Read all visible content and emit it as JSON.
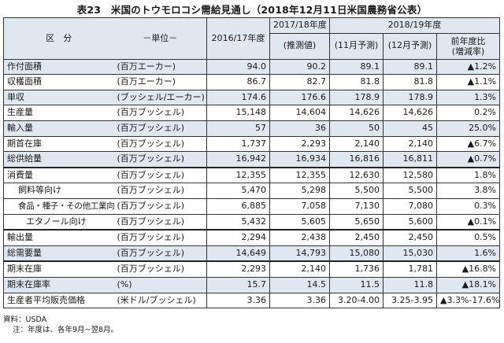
{
  "title": "表23　米国のトウモロコシ需給見通し（2018年12月11日米国農務省公表）",
  "header": {
    "kubun": "区　分",
    "unit": "－単位－",
    "col_2016": "2016/17年度",
    "col_2017": "2017/18年度",
    "col_2017_sub": "(推測値)",
    "col_2018": "2018/19年度",
    "col_2018_nov": "(11月予測)",
    "col_2018_dec": "(12月予測)",
    "col_change_line1": "前年度比",
    "col_change_line2": "(増減率)"
  },
  "rows": [
    {
      "label": "作付面積",
      "unit": "(百万エーカー)",
      "v2016": "94.0",
      "v2017": "90.2",
      "nov": "89.1",
      "dec": "89.1",
      "chg": "▲1.2%"
    },
    {
      "label": "収穫面積",
      "unit": "(百万エーカー)",
      "v2016": "86.7",
      "v2017": "82.7",
      "nov": "81.8",
      "dec": "81.8",
      "chg": "▲1.1%"
    },
    {
      "label": "単収",
      "unit": "(ブッシェル/エーカー)",
      "v2016": "174.6",
      "v2017": "176.6",
      "nov": "178.9",
      "dec": "178.9",
      "chg": "1.3%"
    },
    {
      "label": "生産量",
      "unit": "(百万ブッシェル)",
      "v2016": "15,148",
      "v2017": "14,604",
      "nov": "14,626",
      "dec": "14,626",
      "chg": "0.2%"
    },
    {
      "label": "輸入量",
      "unit": "(百万ブッシェル)",
      "v2016": "57",
      "v2017": "36",
      "nov": "50",
      "dec": "45",
      "chg": "25.0%"
    },
    {
      "label": "期首在庫",
      "unit": "(百万ブッシェル)",
      "v2016": "1,737",
      "v2017": "2,293",
      "nov": "2,140",
      "dec": "2,140",
      "chg": "▲6.7%"
    },
    {
      "label": "総供給量",
      "unit": "(百万ブッシェル)",
      "v2016": "16,942",
      "v2017": "16,934",
      "nov": "16,816",
      "dec": "16,811",
      "chg": "▲0.7%"
    },
    {
      "label": "消費量",
      "unit": "(百万ブッシェル)",
      "v2016": "12,355",
      "v2017": "12,355",
      "nov": "12,630",
      "dec": "12,580",
      "chg": "1.8%"
    },
    {
      "label": "飼料等向け",
      "unit": "(百万ブッシェル)",
      "v2016": "5,470",
      "v2017": "5,298",
      "nov": "5,500",
      "dec": "5,500",
      "chg": "3.8%"
    },
    {
      "label": "食品・種子・その他工業向け",
      "unit": "(百万ブッシェル)",
      "v2016": "6,885",
      "v2017": "7,058",
      "nov": "7,130",
      "dec": "7,080",
      "chg": "0.3%"
    },
    {
      "label": "エタノール向け",
      "unit": "(百万ブッシェル)",
      "v2016": "5,432",
      "v2017": "5,605",
      "nov": "5,650",
      "dec": "5,600",
      "chg": "▲0.1%"
    },
    {
      "label": "輸出量",
      "unit": "(百万ブッシェル)",
      "v2016": "2,294",
      "v2017": "2,438",
      "nov": "2,450",
      "dec": "2,450",
      "chg": "0.5%"
    },
    {
      "label": "総需要量",
      "unit": "(百万ブッシェル)",
      "v2016": "14,649",
      "v2017": "14,793",
      "nov": "15,080",
      "dec": "15,030",
      "chg": "1.6%"
    },
    {
      "label": "期末在庫",
      "unit": "(百万ブッシェル)",
      "v2016": "2,293",
      "v2017": "2,140",
      "nov": "1,736",
      "dec": "1,781",
      "chg": "▲16.8%"
    },
    {
      "label": "期末在庫率",
      "unit": "(%)",
      "v2016": "15.7",
      "v2017": "14.5",
      "nov": "11.5",
      "dec": "11.8",
      "chg": "▲18.1%"
    },
    {
      "label": "生産者平均販売価格",
      "unit": "(米ドル/ブッシェル)",
      "v2016": "3.36",
      "v2017": "3.36",
      "nov": "3.20-4.00",
      "dec": "3.25-3.95",
      "chg": "▲3.3%-17.6%"
    }
  ],
  "notes": {
    "source": "資料：USDA",
    "note": "注：年度は、各年9月~翌8月。"
  }
}
